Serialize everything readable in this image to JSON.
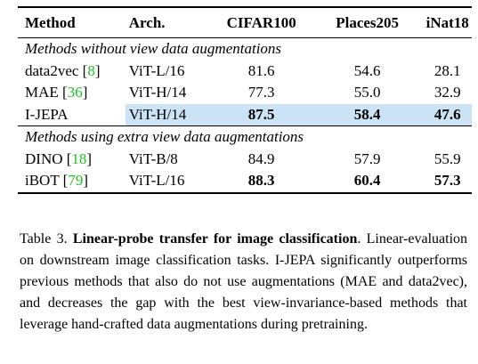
{
  "table": {
    "header": [
      "Method",
      "Arch.",
      "CIFAR100",
      "Places205",
      "iNat18"
    ],
    "sections": [
      {
        "title": "Methods without view data augmentations",
        "rows": [
          {
            "method": "data2vec",
            "cite": [
              "[",
              "8",
              "]"
            ],
            "arch": "ViT-L/16",
            "values": [
              "81.6",
              "54.6",
              "28.1"
            ],
            "bold": [
              false,
              false,
              false
            ],
            "highlight": false
          },
          {
            "method": "MAE",
            "cite": [
              "[",
              "36",
              "]"
            ],
            "arch": "ViT-H/14",
            "values": [
              "77.3",
              "55.0",
              "32.9"
            ],
            "bold": [
              false,
              false,
              false
            ],
            "highlight": false
          },
          {
            "method": "I-JEPA",
            "arch": "ViT-H/14",
            "values": [
              "87.5",
              "58.4",
              "47.6"
            ],
            "bold": [
              true,
              true,
              true
            ],
            "highlight": true
          }
        ]
      },
      {
        "title": "Methods using extra view data augmentations",
        "rows": [
          {
            "method": "DINO",
            "cite": [
              "[",
              "18",
              "]"
            ],
            "arch": "ViT-B/8",
            "values": [
              "84.9",
              "57.9",
              "55.9"
            ],
            "bold": [
              false,
              false,
              false
            ],
            "highlight": false
          },
          {
            "method": "iBOT",
            "cite": [
              "[",
              "79",
              "]"
            ],
            "arch": "ViT-L/16",
            "values": [
              "88.3",
              "60.4",
              "57.3"
            ],
            "bold": [
              true,
              true,
              true
            ],
            "highlight": false
          }
        ]
      }
    ]
  },
  "caption": {
    "label": "Table 3.",
    "title": "Linear-probe transfer for image classification",
    "body": ". Linear-evaluation on downstream image classification tasks. I-JEPA significantly outperforms previous methods that also do not use augmentations (MAE and data2vec), and decreases the gap with the best view-invariance-based methods that leverage hand-crafted data augmentations during pretraining."
  }
}
